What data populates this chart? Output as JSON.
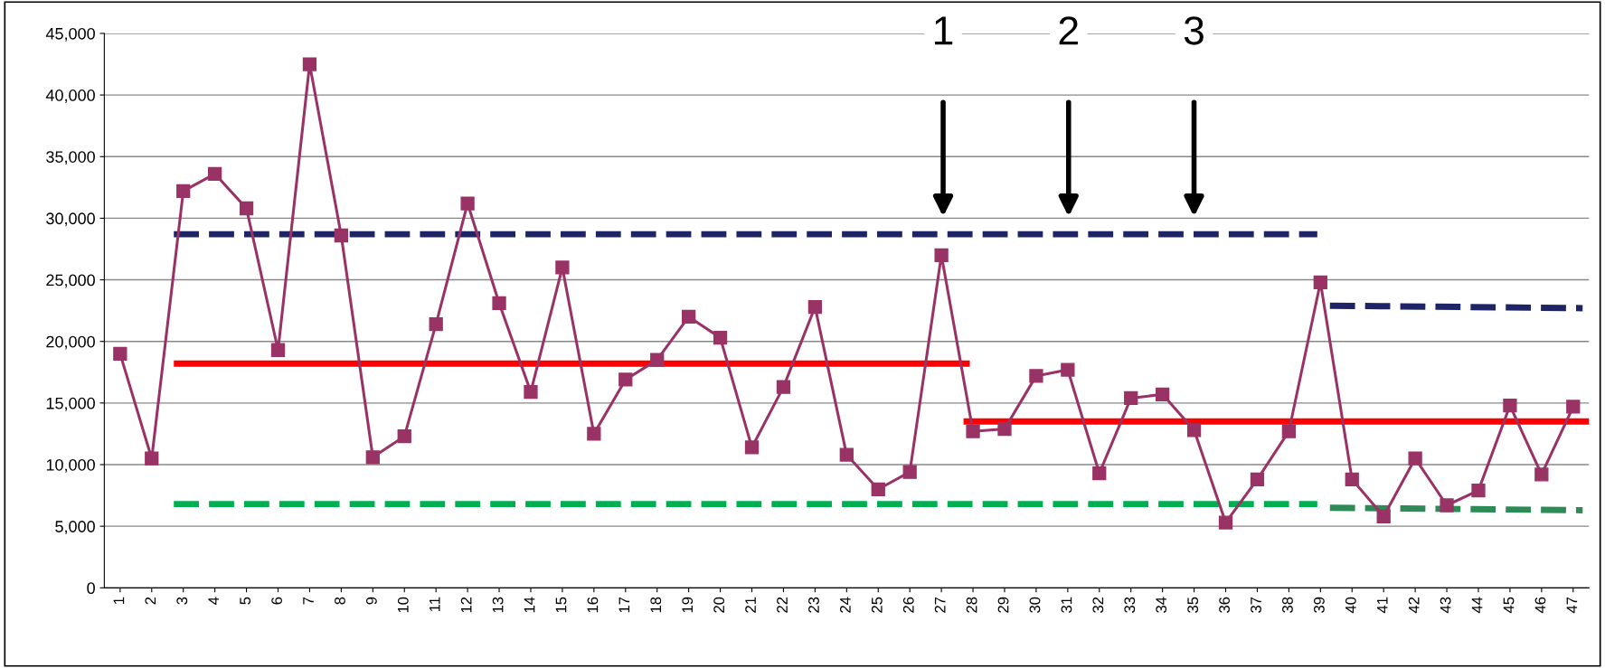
{
  "chart_data": {
    "type": "line",
    "x": [
      1,
      2,
      3,
      4,
      5,
      6,
      7,
      8,
      9,
      10,
      11,
      12,
      13,
      14,
      15,
      16,
      17,
      18,
      19,
      20,
      21,
      22,
      23,
      24,
      25,
      26,
      27,
      28,
      29,
      30,
      31,
      32,
      33,
      34,
      35,
      36,
      37,
      38,
      39,
      40,
      41,
      42,
      43,
      44,
      45,
      46,
      47
    ],
    "xlim": [
      0.5,
      47.5
    ],
    "xticks": [
      1,
      2,
      3,
      4,
      5,
      6,
      7,
      8,
      9,
      10,
      11,
      12,
      13,
      14,
      15,
      16,
      17,
      18,
      19,
      20,
      21,
      22,
      23,
      24,
      25,
      26,
      27,
      28,
      29,
      30,
      31,
      32,
      33,
      34,
      35,
      36,
      37,
      38,
      39,
      40,
      41,
      42,
      43,
      44,
      45,
      46,
      47
    ],
    "ylim": [
      0,
      45000
    ],
    "yticks": [
      {
        "value": 0,
        "label": "0"
      },
      {
        "value": 5000,
        "label": "5,000"
      },
      {
        "value": 10000,
        "label": "10,000"
      },
      {
        "value": 15000,
        "label": "15,000"
      },
      {
        "value": 20000,
        "label": "20,000"
      },
      {
        "value": 25000,
        "label": "25,000"
      },
      {
        "value": 30000,
        "label": "30,000"
      },
      {
        "value": 35000,
        "label": "35,000"
      },
      {
        "value": 40000,
        "label": "40,000"
      },
      {
        "value": 45000,
        "label": "45,000"
      }
    ],
    "grid": "y",
    "series": [
      {
        "color": "#993366",
        "marker": "square",
        "line_style": "solid",
        "values": [
          19000,
          10500,
          32200,
          33600,
          30800,
          19300,
          42500,
          28600,
          10600,
          12300,
          21400,
          31200,
          23100,
          15900,
          26000,
          12500,
          16900,
          18500,
          22000,
          20300,
          11400,
          16300,
          22800,
          10800,
          8000,
          9400,
          27000,
          12700,
          12900,
          17200,
          17700,
          9300,
          15400,
          15700,
          12800,
          5300,
          8800,
          12700,
          24800,
          8800,
          5800,
          10500,
          6700,
          7900,
          14800,
          9200,
          14700
        ]
      },
      {
        "color": "#1f2466",
        "marker": "none",
        "line_style": "dashed",
        "x": [
          2.7,
          38.9
        ],
        "values": [
          28700,
          28700
        ]
      },
      {
        "color": "#ff0000",
        "marker": "none",
        "line_style": "solid",
        "x": [
          2.8,
          27.8
        ],
        "values": [
          18200,
          18200
        ]
      },
      {
        "color": "#00b050",
        "marker": "none",
        "line_style": "dashed",
        "x": [
          2.7,
          38.9
        ],
        "values": [
          6800,
          6800
        ]
      },
      {
        "color": "#1f2466",
        "marker": "none",
        "line_style": "dashed",
        "x": [
          39.3,
          47.3
        ],
        "values": [
          22900,
          22700
        ]
      },
      {
        "color": "#ff0000",
        "marker": "none",
        "line_style": "solid",
        "x": [
          27.8,
          47.5
        ],
        "values": [
          13500,
          13500
        ]
      },
      {
        "color": "#2e8b57",
        "marker": "none",
        "line_style": "dashed",
        "x": [
          39.3,
          47.3
        ],
        "values": [
          6500,
          6300
        ]
      }
    ],
    "annotations": [
      "1",
      "2",
      "3"
    ]
  }
}
